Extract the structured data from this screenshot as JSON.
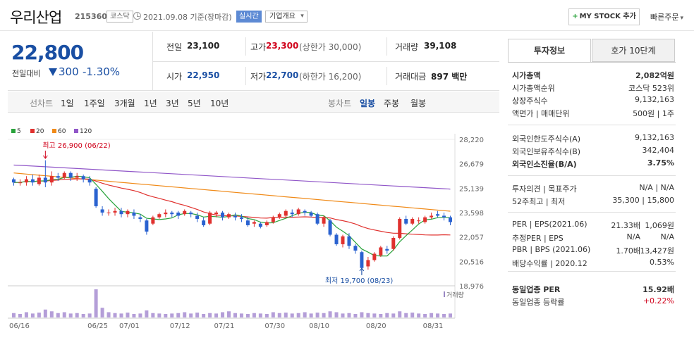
{
  "header": {
    "company_name": "우리산업",
    "stock_code": "215360",
    "market_badge": "코스닥",
    "date_text": "2021.09.08 기준(장마감)",
    "live_button": "실시간",
    "overview_button": "기업개요",
    "mystock_button": "MY STOCK 추가",
    "quick_order_button": "빠른주문"
  },
  "price": {
    "current": "22,800",
    "change_label": "전일대비",
    "change_value": "300",
    "change_pct": "-1.30%",
    "direction": "down"
  },
  "stats": {
    "prev_close_label": "전일",
    "prev_close": "23,100",
    "high_label": "고가",
    "high": "23,300",
    "high_sub": "(상한가 30,000)",
    "volume_label": "거래량",
    "volume": "39,108",
    "open_label": "시가",
    "open": "22,950",
    "low_label": "저가",
    "low": "22,700",
    "low_sub": "(하한가 16,200)",
    "value_label": "거래대금",
    "value": "897 백만"
  },
  "period_bar": {
    "line_label": "선차트",
    "line_periods": [
      "1일",
      "1주일",
      "3개월",
      "1년",
      "3년",
      "5년",
      "10년"
    ],
    "candle_label": "봉차트",
    "candle_periods": [
      "일봉",
      "주봉",
      "월봉"
    ],
    "active_candle": "일봉"
  },
  "legend": [
    {
      "label": "5",
      "color": "#2aa33c"
    },
    {
      "label": "20",
      "color": "#e0312e"
    },
    {
      "label": "60",
      "color": "#f08a18"
    },
    {
      "label": "120",
      "color": "#9056c8"
    }
  ],
  "chart_data": {
    "type": "candlestick",
    "y_ticks": [
      "28,220",
      "26,679",
      "25,139",
      "23,598",
      "22,057",
      "20,516",
      "18,976"
    ],
    "x_ticks": [
      "06/16",
      "06/25",
      "07/01",
      "07/12",
      "07/21",
      "07/30",
      "08/10",
      "08/20",
      "08/31"
    ],
    "ylim": [
      18976,
      28220
    ],
    "annotations": {
      "high": "최고 26,900 (06/22)",
      "low": "최저 19,700 (08/23)"
    },
    "volume_label": "거래량",
    "candles": [
      [
        25700,
        25500,
        25800,
        25300
      ],
      [
        25500,
        25500,
        25700,
        25300
      ],
      [
        25500,
        25700,
        25900,
        25300
      ],
      [
        25700,
        25500,
        26000,
        25300
      ],
      [
        25400,
        25800,
        26000,
        25300
      ],
      [
        25800,
        25500,
        26900,
        25200
      ],
      [
        25500,
        25900,
        26200,
        25300
      ],
      [
        25900,
        25800,
        26100,
        25600
      ],
      [
        25800,
        26100,
        26200,
        25700
      ],
      [
        26100,
        25800,
        26200,
        25600
      ],
      [
        25800,
        25900,
        26100,
        25600
      ],
      [
        25900,
        25700,
        26000,
        25500
      ],
      [
        25700,
        25500,
        25900,
        25300
      ],
      [
        25100,
        24000,
        25200,
        23900
      ],
      [
        23800,
        23600,
        24000,
        23400
      ],
      [
        23600,
        23600,
        23800,
        23400
      ],
      [
        23600,
        23700,
        23900,
        23400
      ],
      [
        23700,
        23500,
        23900,
        23300
      ],
      [
        23500,
        23700,
        23800,
        23300
      ],
      [
        23600,
        23400,
        23800,
        23200
      ],
      [
        23300,
        23200,
        23500,
        23000
      ],
      [
        23100,
        22400,
        23200,
        22200
      ],
      [
        22900,
        23300,
        23400,
        22800
      ],
      [
        23300,
        23500,
        23600,
        23200
      ],
      [
        23500,
        23600,
        23800,
        23300
      ],
      [
        23600,
        23500,
        23700,
        23300
      ],
      [
        23600,
        23400,
        23700,
        23200
      ],
      [
        23500,
        23700,
        23800,
        23400
      ],
      [
        23600,
        23500,
        23700,
        23300
      ],
      [
        23400,
        23200,
        23600,
        23000
      ],
      [
        23100,
        22800,
        23300,
        22700
      ],
      [
        22900,
        23600,
        23700,
        22800
      ],
      [
        23500,
        23600,
        23700,
        23300
      ],
      [
        23600,
        23300,
        23700,
        23100
      ],
      [
        23300,
        23500,
        23600,
        23200
      ],
      [
        23400,
        23300,
        23600,
        23100
      ],
      [
        23300,
        23200,
        23500,
        23000
      ],
      [
        23100,
        22800,
        23300,
        22700
      ],
      [
        22900,
        23000,
        23100,
        22700
      ],
      [
        22900,
        22700,
        23000,
        22600
      ],
      [
        22800,
        23000,
        23100,
        22700
      ],
      [
        23000,
        23300,
        23400,
        22900
      ],
      [
        23300,
        23500,
        23600,
        23200
      ],
      [
        23400,
        23700,
        23800,
        23300
      ],
      [
        23600,
        23500,
        23800,
        23300
      ],
      [
        23500,
        23800,
        23900,
        23400
      ],
      [
        23700,
        23600,
        23800,
        23400
      ],
      [
        23600,
        23400,
        23700,
        23300
      ],
      [
        23500,
        22900,
        23600,
        22800
      ],
      [
        22900,
        23300,
        23400,
        22700
      ],
      [
        23100,
        22200,
        23200,
        22100
      ],
      [
        22200,
        21600,
        22300,
        21500
      ],
      [
        21600,
        22100,
        22200,
        21400
      ],
      [
        22100,
        21500,
        22300,
        21300
      ],
      [
        21500,
        21200,
        21600,
        21000
      ],
      [
        21100,
        20100,
        21200,
        19700
      ],
      [
        20200,
        20600,
        20800,
        20000
      ],
      [
        20600,
        21000,
        21100,
        20500
      ],
      [
        20900,
        21400,
        21500,
        20800
      ],
      [
        21300,
        21200,
        21500,
        21000
      ],
      [
        21300,
        22000,
        22100,
        21200
      ],
      [
        22000,
        23200,
        23300,
        21900
      ],
      [
        23200,
        22900,
        23400,
        22800
      ],
      [
        22900,
        23200,
        23300,
        22800
      ],
      [
        23100,
        23100,
        23300,
        22900
      ],
      [
        23000,
        23300,
        23400,
        22900
      ],
      [
        23300,
        23400,
        23600,
        23200
      ],
      [
        23500,
        23400,
        23700,
        23300
      ],
      [
        23400,
        23300,
        23600,
        23100
      ],
      [
        23300,
        23000,
        23400,
        22800
      ]
    ],
    "volumes": [
      10,
      8,
      12,
      9,
      11,
      18,
      14,
      10,
      12,
      9,
      10,
      8,
      9,
      64,
      22,
      12,
      10,
      9,
      11,
      8,
      9,
      16,
      10,
      9,
      8,
      9,
      10,
      12,
      9,
      11,
      8,
      10,
      9,
      12,
      14,
      10,
      9,
      8,
      10,
      9,
      8,
      12,
      10,
      11,
      9,
      10,
      12,
      9,
      11,
      10,
      14,
      12,
      9,
      10,
      8,
      12,
      10,
      9,
      8,
      10,
      9,
      14,
      10,
      11,
      9,
      8,
      10,
      9,
      8,
      9
    ]
  },
  "right_panel": {
    "tabs": [
      "투자정보",
      "호가 10단계"
    ],
    "rows": [
      {
        "k": "시가총액",
        "v": "2,082억원"
      },
      {
        "k": "시가총액순위",
        "v": "코스닥 523위"
      },
      {
        "k": "상장주식수",
        "v": "9,132,163"
      },
      {
        "k": "액면가 | 매매단위",
        "v": "500원 | 1주"
      },
      {
        "k": "외국인한도주식수(A)",
        "v": "9,132,163"
      },
      {
        "k": "외국인보유주식수(B)",
        "v": "342,404"
      },
      {
        "k": "외국인소진율(B/A)",
        "v": "3.75%"
      },
      {
        "k": "투자의견 | 목표주가",
        "v": "N/A | N/A"
      },
      {
        "k": "52주최고 | 최저",
        "v": "35,300 | 15,800"
      },
      {
        "k": "PER | EPS(2021.06)",
        "v1": "21.33배",
        "v": "1,069원"
      },
      {
        "k": "추정PER | EPS",
        "v1": "N/A",
        "v": "N/A"
      },
      {
        "k": "PBR | BPS (2021.06)",
        "v1": "1.70배",
        "v": "13,427원"
      },
      {
        "k": "배당수익률 | 2020.12",
        "v": "0.53%"
      },
      {
        "k": "동일업종 PER",
        "v": "15.92배"
      },
      {
        "k": "동일업종 등락률",
        "v": "+0.22%"
      }
    ]
  }
}
